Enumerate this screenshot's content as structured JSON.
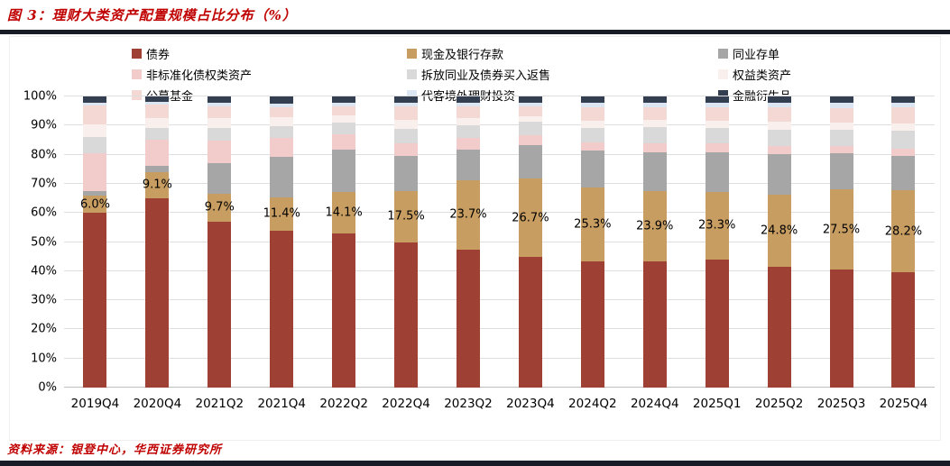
{
  "title": "图 3：理财大类资产配置规模占比分布（%）",
  "source": "资料来源：银登中心，华西证券研究所",
  "colors": {
    "accent_red": "#C00000",
    "divider_bar": "#181C26",
    "gridline": "#DEDEDE",
    "axis_text": "#000000"
  },
  "chart_data": {
    "type": "bar",
    "stacked": true,
    "stacked_total": 100,
    "title": "理财大类资产配置规模占比分布（%）",
    "xlabel": "",
    "ylabel": "",
    "ylim": [
      0,
      100
    ],
    "grid": true,
    "legend_position": "top",
    "yticks": [
      "0%",
      "10%",
      "20%",
      "30%",
      "40%",
      "50%",
      "60%",
      "70%",
      "80%",
      "90%",
      "100%"
    ],
    "categories": [
      "2019Q4",
      "2020Q4",
      "2021Q2",
      "2021Q4",
      "2022Q2",
      "2022Q4",
      "2023Q2",
      "2023Q4",
      "2024Q2",
      "2024Q4",
      "2025Q1",
      "2025Q2",
      "2025Q3",
      "2025Q4"
    ],
    "data_labels_series": "现金及银行存款",
    "data_labels": [
      "6.0%",
      "9.1%",
      "9.7%",
      "11.4%",
      "14.1%",
      "17.5%",
      "23.7%",
      "26.7%",
      "25.3%",
      "23.9%",
      "23.3%",
      "24.8%",
      "27.5%",
      "28.2%"
    ],
    "series": [
      {
        "name": "债券",
        "color": "#9E4134",
        "labels": false,
        "values": [
          60.0,
          65.0,
          57.0,
          54.0,
          53.0,
          50.0,
          47.5,
          45.0,
          43.5,
          43.5,
          44.0,
          41.5,
          40.5,
          39.5
        ]
      },
      {
        "name": "现金及银行存款",
        "color": "#C79D61",
        "labels": true,
        "values": [
          6.0,
          9.1,
          9.7,
          11.4,
          14.1,
          17.5,
          23.7,
          26.7,
          25.3,
          23.9,
          23.3,
          24.8,
          27.5,
          28.2
        ]
      },
      {
        "name": "同业存单",
        "color": "#A6A6A6",
        "labels": false,
        "values": [
          1.5,
          2.0,
          10.5,
          14.0,
          14.5,
          12.0,
          10.5,
          11.5,
          12.5,
          13.5,
          13.5,
          14.0,
          12.5,
          12.0
        ]
      },
      {
        "name": "非标准化债权类资产",
        "color": "#F2CBCB",
        "labels": false,
        "values": [
          13.0,
          9.0,
          7.5,
          6.5,
          5.5,
          4.5,
          4.0,
          3.5,
          3.0,
          3.0,
          3.0,
          2.8,
          2.5,
          2.5
        ]
      },
      {
        "name": "拆放同业及债券买入返售",
        "color": "#D9D9D9",
        "labels": false,
        "values": [
          5.5,
          4.0,
          4.5,
          4.0,
          4.0,
          5.0,
          4.5,
          4.5,
          5.0,
          5.5,
          5.5,
          5.5,
          5.5,
          6.0
        ]
      },
      {
        "name": "权益类资产",
        "color": "#F9EFED",
        "labels": false,
        "values": [
          4.5,
          3.5,
          3.5,
          3.0,
          2.5,
          3.0,
          2.5,
          2.0,
          2.5,
          2.5,
          2.5,
          2.6,
          2.5,
          2.5
        ]
      },
      {
        "name": "公募基金",
        "color": "#F4D8D3",
        "labels": false,
        "values": [
          6.5,
          4.5,
          4.0,
          3.5,
          3.0,
          4.5,
          4.0,
          3.5,
          4.5,
          4.5,
          4.5,
          5.0,
          5.0,
          5.5
        ]
      },
      {
        "name": "代客境外理财投资",
        "color": "#DCE6F2",
        "labels": false,
        "values": [
          1.0,
          1.0,
          1.0,
          1.2,
          1.2,
          1.3,
          1.2,
          1.2,
          1.5,
          1.5,
          1.5,
          1.6,
          1.8,
          1.6
        ]
      },
      {
        "name": "金融衍生品",
        "color": "#333F50",
        "labels": false,
        "values": [
          2.0,
          1.9,
          2.3,
          2.4,
          2.2,
          2.2,
          2.1,
          2.1,
          2.2,
          2.1,
          2.2,
          2.2,
          2.2,
          2.2
        ]
      }
    ]
  }
}
